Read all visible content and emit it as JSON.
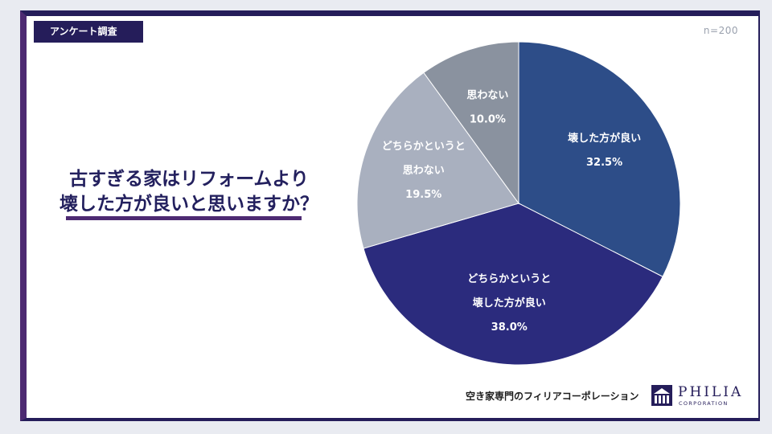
{
  "header": {
    "tag": "アンケート調査",
    "sample_size": "n=200"
  },
  "question": {
    "line1": "古すぎる家はリフォームより",
    "line2": "壊した方が良いと思いますか？"
  },
  "footer": {
    "company_tagline": "空き家専門のフィリアコーポレーション",
    "logo_name": "PHILIA",
    "logo_sub": "CORPORATION"
  },
  "chart_data": {
    "type": "pie",
    "slices": [
      {
        "label_lines": [
          "壊した方が良い"
        ],
        "value": 32.5,
        "value_label": "32.5%",
        "color": "#2d4d88"
      },
      {
        "label_lines": [
          "どちらかというと",
          "壊した方が良い"
        ],
        "value": 38.0,
        "value_label": "38.0%",
        "color": "#2b2b7d"
      },
      {
        "label_lines": [
          "どちらかというと",
          "思わない"
        ],
        "value": 19.5,
        "value_label": "19.5%",
        "color": "#a9b0bf"
      },
      {
        "label_lines": [
          "思わない"
        ],
        "value": 10.0,
        "value_label": "10.0%",
        "color": "#8a929f"
      }
    ]
  }
}
